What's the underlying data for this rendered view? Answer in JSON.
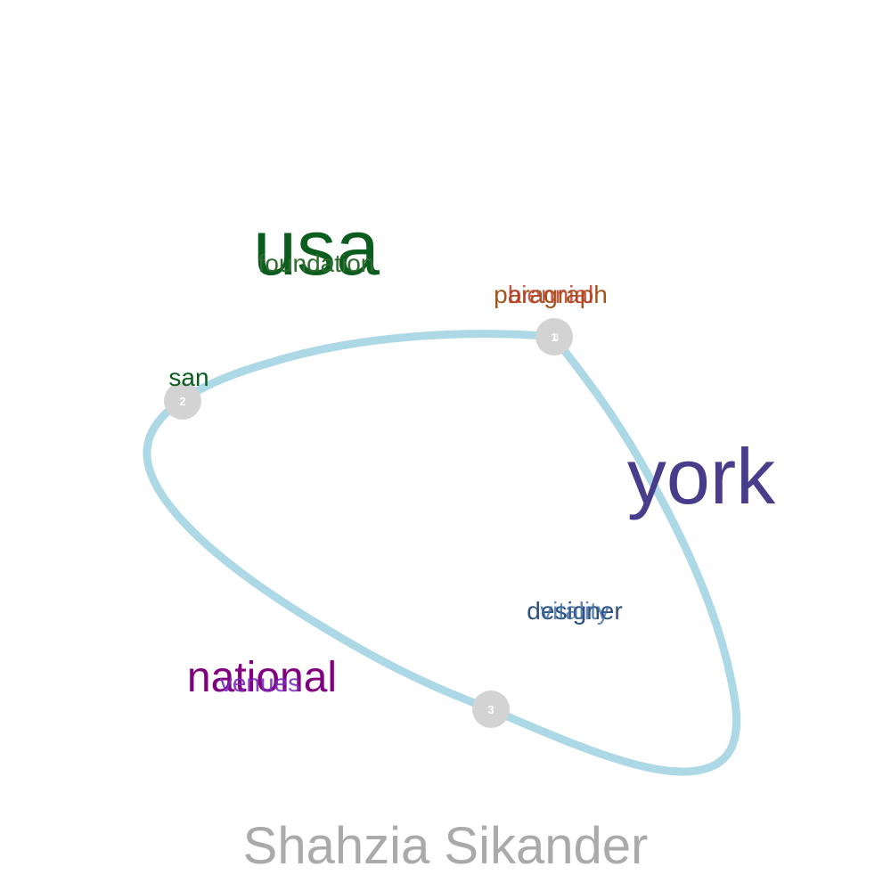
{
  "title": "Shahzia Sikander",
  "nodes": [
    {
      "id": "node-1",
      "label": "1"
    },
    {
      "id": "node-2",
      "label": "2"
    },
    {
      "id": "node-3",
      "label": "3"
    },
    {
      "id": "node-4",
      "label": "4"
    }
  ],
  "words": [
    {
      "key": "usa",
      "text": "usa",
      "color": "#0b5d1e"
    },
    {
      "key": "foundation",
      "text": "foundation",
      "color": "#2e6b2e"
    },
    {
      "key": "san",
      "text": "san",
      "color": "#0b5d1e"
    },
    {
      "key": "paragraph",
      "text": "paragraph",
      "color": "#a0561a"
    },
    {
      "key": "biennial",
      "text": "biennial",
      "color": "#c0392b"
    },
    {
      "key": "york",
      "text": "york",
      "color": "#483d8b"
    },
    {
      "key": "designer",
      "text": "designer",
      "color": "#2f4f7f"
    },
    {
      "key": "vitality",
      "text": "vitality",
      "color": "#3b6aa0"
    },
    {
      "key": "national",
      "text": "national",
      "color": "#800080"
    },
    {
      "key": "venues",
      "text": "venues",
      "color": "#7b2bbf"
    }
  ],
  "colors": {
    "loop": "#add8e6",
    "node": "#d3d3d3",
    "title": "#aaaaaa"
  }
}
